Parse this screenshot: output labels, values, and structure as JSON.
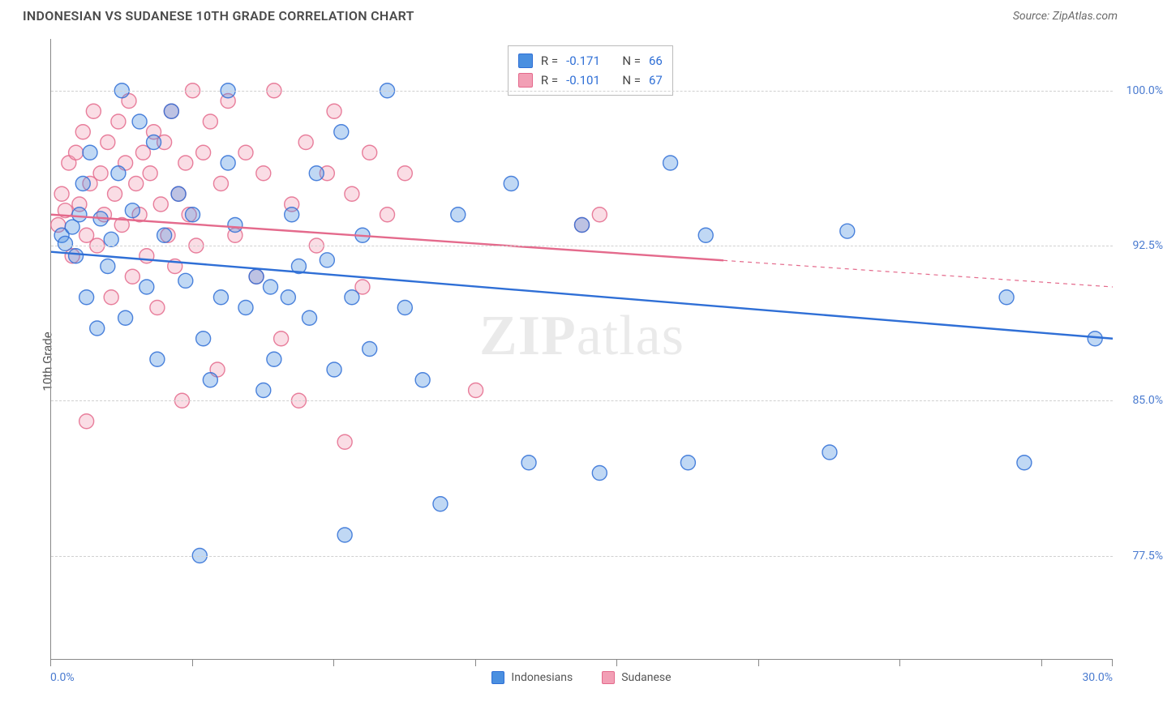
{
  "title": "INDONESIAN VS SUDANESE 10TH GRADE CORRELATION CHART",
  "source": "Source: ZipAtlas.com",
  "ylabel": "10th Grade",
  "watermark": "ZIPatlas",
  "chart": {
    "type": "scatter",
    "background_color": "#ffffff",
    "grid_color": "#d0d0d0",
    "axis_color": "#888888",
    "xlim": [
      0,
      30
    ],
    "ylim": [
      72.5,
      102.5
    ],
    "x_tick_positions": [
      0,
      4,
      8,
      12,
      16,
      20,
      24,
      28,
      30
    ],
    "x_min_label": "0.0%",
    "x_max_label": "30.0%",
    "y_gridlines": [
      {
        "value": 77.5,
        "label": "77.5%"
      },
      {
        "value": 85.0,
        "label": "85.0%"
      },
      {
        "value": 92.5,
        "label": "92.5%"
      },
      {
        "value": 100.0,
        "label": "100.0%"
      }
    ],
    "tick_label_color": "#4a7bd0",
    "tick_label_fontsize": 14,
    "marker_radius": 9,
    "marker_fill_opacity": 0.35,
    "marker_stroke_opacity": 0.85,
    "marker_stroke_width": 1.4,
    "trend_line_width": 2.4,
    "series": [
      {
        "name": "Indonesians",
        "color": "#4a8fe0",
        "stroke": "#2f6fd6",
        "R": "-0.171",
        "N": "66",
        "trend": {
          "x1": 0,
          "y1": 92.2,
          "x2": 30,
          "y2": 88.0,
          "dashed_from_x": null
        },
        "points": [
          [
            0.3,
            93.0
          ],
          [
            0.4,
            92.6
          ],
          [
            0.6,
            93.4
          ],
          [
            0.7,
            92.0
          ],
          [
            0.8,
            94.0
          ],
          [
            0.9,
            95.5
          ],
          [
            1.0,
            90.0
          ],
          [
            1.1,
            97.0
          ],
          [
            1.3,
            88.5
          ],
          [
            1.4,
            93.8
          ],
          [
            1.6,
            91.5
          ],
          [
            1.7,
            92.8
          ],
          [
            1.9,
            96.0
          ],
          [
            2.0,
            100.0
          ],
          [
            2.1,
            89.0
          ],
          [
            2.3,
            94.2
          ],
          [
            2.5,
            98.5
          ],
          [
            2.7,
            90.5
          ],
          [
            2.9,
            97.5
          ],
          [
            3.0,
            87.0
          ],
          [
            3.2,
            93.0
          ],
          [
            3.4,
            99.0
          ],
          [
            3.6,
            95.0
          ],
          [
            3.8,
            90.8
          ],
          [
            4.0,
            94.0
          ],
          [
            4.2,
            77.5
          ],
          [
            4.3,
            88.0
          ],
          [
            4.5,
            86.0
          ],
          [
            4.8,
            90.0
          ],
          [
            5.0,
            100.0
          ],
          [
            5.0,
            96.5
          ],
          [
            5.2,
            93.5
          ],
          [
            5.5,
            89.5
          ],
          [
            5.8,
            91.0
          ],
          [
            6.0,
            85.5
          ],
          [
            6.2,
            90.5
          ],
          [
            6.3,
            87.0
          ],
          [
            6.7,
            90.0
          ],
          [
            6.8,
            94.0
          ],
          [
            7.0,
            91.5
          ],
          [
            7.3,
            89.0
          ],
          [
            7.5,
            96.0
          ],
          [
            7.8,
            91.8
          ],
          [
            8.0,
            86.5
          ],
          [
            8.2,
            98.0
          ],
          [
            8.3,
            78.5
          ],
          [
            8.5,
            90.0
          ],
          [
            8.8,
            93.0
          ],
          [
            9.0,
            87.5
          ],
          [
            9.5,
            100.0
          ],
          [
            10.0,
            89.5
          ],
          [
            10.5,
            86.0
          ],
          [
            11.0,
            80.0
          ],
          [
            11.5,
            94.0
          ],
          [
            13.0,
            95.5
          ],
          [
            13.5,
            82.0
          ],
          [
            15.0,
            93.5
          ],
          [
            15.5,
            81.5
          ],
          [
            17.5,
            96.5
          ],
          [
            18.0,
            82.0
          ],
          [
            18.5,
            93.0
          ],
          [
            22.0,
            82.5
          ],
          [
            22.5,
            93.2
          ],
          [
            27.5,
            82.0
          ],
          [
            27.0,
            90.0
          ],
          [
            29.5,
            88.0
          ]
        ]
      },
      {
        "name": "Sudanese",
        "color": "#f29fb5",
        "stroke": "#e46a8c",
        "R": "-0.101",
        "N": "67",
        "trend": {
          "x1": 0,
          "y1": 94.0,
          "x2": 30,
          "y2": 90.5,
          "dashed_from_x": 19
        },
        "points": [
          [
            0.2,
            93.5
          ],
          [
            0.3,
            95.0
          ],
          [
            0.4,
            94.2
          ],
          [
            0.5,
            96.5
          ],
          [
            0.6,
            92.0
          ],
          [
            0.7,
            97.0
          ],
          [
            0.8,
            94.5
          ],
          [
            0.9,
            98.0
          ],
          [
            1.0,
            93.0
          ],
          [
            1.0,
            84.0
          ],
          [
            1.1,
            95.5
          ],
          [
            1.2,
            99.0
          ],
          [
            1.3,
            92.5
          ],
          [
            1.4,
            96.0
          ],
          [
            1.5,
            94.0
          ],
          [
            1.6,
            97.5
          ],
          [
            1.7,
            90.0
          ],
          [
            1.8,
            95.0
          ],
          [
            1.9,
            98.5
          ],
          [
            2.0,
            93.5
          ],
          [
            2.1,
            96.5
          ],
          [
            2.2,
            99.5
          ],
          [
            2.3,
            91.0
          ],
          [
            2.4,
            95.5
          ],
          [
            2.5,
            94.0
          ],
          [
            2.6,
            97.0
          ],
          [
            2.7,
            92.0
          ],
          [
            2.8,
            96.0
          ],
          [
            2.9,
            98.0
          ],
          [
            3.0,
            89.5
          ],
          [
            3.1,
            94.5
          ],
          [
            3.2,
            97.5
          ],
          [
            3.3,
            93.0
          ],
          [
            3.4,
            99.0
          ],
          [
            3.5,
            91.5
          ],
          [
            3.6,
            95.0
          ],
          [
            3.7,
            85.0
          ],
          [
            3.8,
            96.5
          ],
          [
            3.9,
            94.0
          ],
          [
            4.0,
            100.0
          ],
          [
            4.1,
            92.5
          ],
          [
            4.3,
            97.0
          ],
          [
            4.5,
            98.5
          ],
          [
            4.7,
            86.5
          ],
          [
            4.8,
            95.5
          ],
          [
            5.0,
            99.5
          ],
          [
            5.2,
            93.0
          ],
          [
            5.5,
            97.0
          ],
          [
            5.8,
            91.0
          ],
          [
            6.0,
            96.0
          ],
          [
            6.3,
            100.0
          ],
          [
            6.5,
            88.0
          ],
          [
            6.8,
            94.5
          ],
          [
            7.0,
            85.0
          ],
          [
            7.2,
            97.5
          ],
          [
            7.5,
            92.5
          ],
          [
            7.8,
            96.0
          ],
          [
            8.0,
            99.0
          ],
          [
            8.3,
            83.0
          ],
          [
            8.5,
            95.0
          ],
          [
            8.8,
            90.5
          ],
          [
            9.0,
            97.0
          ],
          [
            9.5,
            94.0
          ],
          [
            10.0,
            96.0
          ],
          [
            12.0,
            85.5
          ],
          [
            15.0,
            93.5
          ],
          [
            15.5,
            94.0
          ]
        ]
      }
    ]
  },
  "legend": {
    "stats_labels": {
      "R": "R =",
      "N": "N ="
    },
    "bottom": [
      {
        "label": "Indonesians",
        "series_index": 0
      },
      {
        "label": "Sudanese",
        "series_index": 1
      }
    ]
  }
}
